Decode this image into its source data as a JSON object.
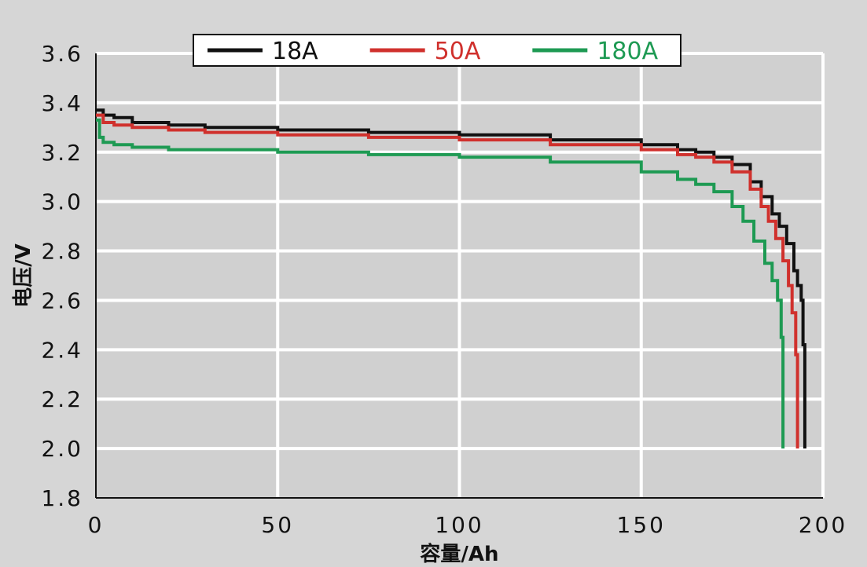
{
  "chart_data": {
    "type": "line",
    "title": "",
    "xlabel": "容量/Ah",
    "ylabel": "电压/V",
    "xlim": [
      0,
      200
    ],
    "ylim": [
      1.8,
      3.6
    ],
    "x_ticks": [
      0,
      50,
      100,
      150,
      200
    ],
    "y_ticks": [
      1.8,
      2.0,
      2.2,
      2.4,
      2.6,
      2.8,
      3.0,
      3.2,
      3.4,
      3.6
    ],
    "x_tick_labels": [
      "0",
      "50",
      "100",
      "150",
      "200"
    ],
    "y_tick_labels": [
      "1.8",
      "2.0",
      "2.2",
      "2.4",
      "2.6",
      "2.8",
      "3.0",
      "3.2",
      "3.4",
      "3.6"
    ],
    "grid": true,
    "legend_position": "top",
    "plot_background": "#d0d0d0",
    "page_background": "#d6d6d6",
    "grid_color": "#ffffff",
    "series": [
      {
        "name": "18A",
        "color": "#111111",
        "x": [
          0,
          2,
          5,
          10,
          20,
          30,
          50,
          75,
          100,
          125,
          150,
          160,
          165,
          170,
          175,
          180,
          183,
          186,
          188,
          190,
          192,
          193,
          194,
          194.5,
          195,
          195
        ],
        "y": [
          3.37,
          3.35,
          3.34,
          3.32,
          3.31,
          3.3,
          3.29,
          3.28,
          3.27,
          3.25,
          3.23,
          3.21,
          3.2,
          3.18,
          3.15,
          3.08,
          3.02,
          2.95,
          2.9,
          2.83,
          2.72,
          2.66,
          2.6,
          2.42,
          2.2,
          2.0
        ]
      },
      {
        "name": "50A",
        "color": "#d0312d",
        "x": [
          0,
          2,
          5,
          10,
          20,
          30,
          50,
          75,
          100,
          125,
          150,
          160,
          165,
          170,
          175,
          180,
          183,
          185,
          187,
          189,
          190.5,
          191.5,
          192.5,
          193,
          193
        ],
        "y": [
          3.35,
          3.32,
          3.31,
          3.3,
          3.29,
          3.28,
          3.27,
          3.26,
          3.25,
          3.23,
          3.21,
          3.19,
          3.18,
          3.16,
          3.12,
          3.05,
          2.98,
          2.92,
          2.85,
          2.76,
          2.66,
          2.55,
          2.38,
          2.2,
          2.0
        ]
      },
      {
        "name": "180A",
        "color": "#1e9a53",
        "x": [
          0,
          1,
          2,
          5,
          10,
          20,
          30,
          50,
          75,
          100,
          125,
          150,
          160,
          165,
          170,
          175,
          178,
          181,
          184,
          186,
          187.5,
          188.5,
          189,
          189
        ],
        "y": [
          3.33,
          3.26,
          3.24,
          3.23,
          3.22,
          3.21,
          3.21,
          3.2,
          3.19,
          3.18,
          3.16,
          3.12,
          3.09,
          3.07,
          3.04,
          2.98,
          2.92,
          2.84,
          2.75,
          2.68,
          2.6,
          2.45,
          2.25,
          2.0
        ]
      }
    ]
  }
}
